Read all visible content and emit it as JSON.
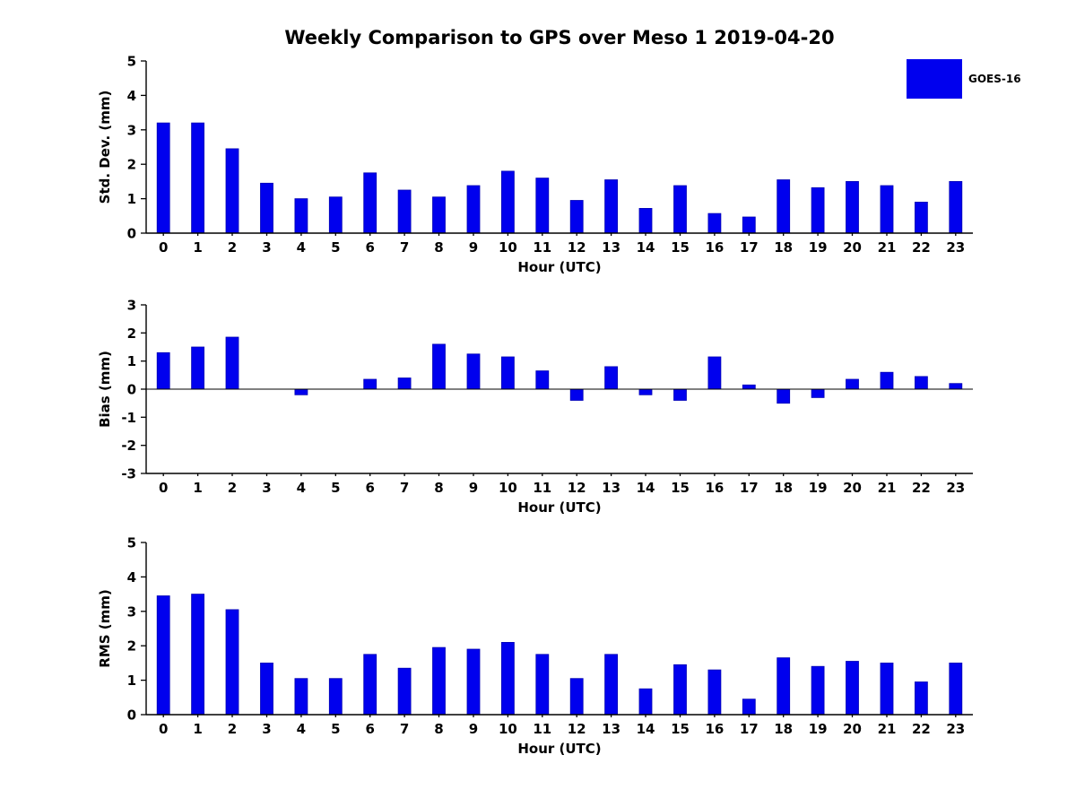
{
  "title": "Weekly Comparison to GPS over Meso 1 2019-04-20",
  "legend": {
    "label": "GOES-16",
    "color": "#0000ee"
  },
  "chart_data": [
    {
      "type": "bar",
      "name": "std-dev",
      "title": "",
      "ylabel": "Std. Dev. (mm)",
      "xlabel": "Hour (UTC)",
      "ylim": [
        0,
        5
      ],
      "yticks": [
        0,
        1,
        2,
        3,
        4,
        5
      ],
      "grid": false,
      "legend_position": "top-right",
      "series_name": "GOES-16",
      "categories": [
        "0",
        "1",
        "2",
        "3",
        "4",
        "5",
        "6",
        "7",
        "8",
        "9",
        "10",
        "11",
        "12",
        "13",
        "14",
        "15",
        "16",
        "17",
        "18",
        "19",
        "20",
        "21",
        "22",
        "23"
      ],
      "values": [
        3.2,
        3.2,
        2.45,
        1.45,
        1.0,
        1.05,
        1.75,
        1.25,
        1.05,
        1.38,
        1.8,
        1.6,
        0.95,
        1.55,
        0.72,
        1.38,
        0.57,
        0.47,
        1.55,
        1.32,
        1.5,
        1.38,
        0.9,
        1.5
      ]
    },
    {
      "type": "bar",
      "name": "bias",
      "title": "",
      "ylabel": "Bias (mm)",
      "xlabel": "Hour (UTC)",
      "ylim": [
        -3,
        3
      ],
      "yticks": [
        -3,
        -2,
        -1,
        0,
        1,
        2,
        3
      ],
      "grid": false,
      "series_name": "GOES-16",
      "categories": [
        "0",
        "1",
        "2",
        "3",
        "4",
        "5",
        "6",
        "7",
        "8",
        "9",
        "10",
        "11",
        "12",
        "13",
        "14",
        "15",
        "16",
        "17",
        "18",
        "19",
        "20",
        "21",
        "22",
        "23"
      ],
      "values": [
        1.3,
        1.5,
        1.85,
        0,
        -0.2,
        0,
        0.35,
        0.4,
        1.6,
        1.25,
        1.15,
        0.65,
        -0.4,
        0.8,
        -0.2,
        -0.4,
        1.15,
        0.15,
        -0.5,
        -0.3,
        0.35,
        0.6,
        0.45,
        0.2
      ]
    },
    {
      "type": "bar",
      "name": "rms",
      "title": "",
      "ylabel": "RMS (mm)",
      "xlabel": "Hour (UTC)",
      "ylim": [
        0,
        5
      ],
      "yticks": [
        0,
        1,
        2,
        3,
        4,
        5
      ],
      "grid": false,
      "series_name": "GOES-16",
      "categories": [
        "0",
        "1",
        "2",
        "3",
        "4",
        "5",
        "6",
        "7",
        "8",
        "9",
        "10",
        "11",
        "12",
        "13",
        "14",
        "15",
        "16",
        "17",
        "18",
        "19",
        "20",
        "21",
        "22",
        "23"
      ],
      "values": [
        3.45,
        3.5,
        3.05,
        1.5,
        1.05,
        1.05,
        1.75,
        1.35,
        1.95,
        1.9,
        2.1,
        1.75,
        1.05,
        1.75,
        0.75,
        1.45,
        1.3,
        0.45,
        1.65,
        1.4,
        1.55,
        1.5,
        0.95,
        1.5
      ]
    }
  ]
}
